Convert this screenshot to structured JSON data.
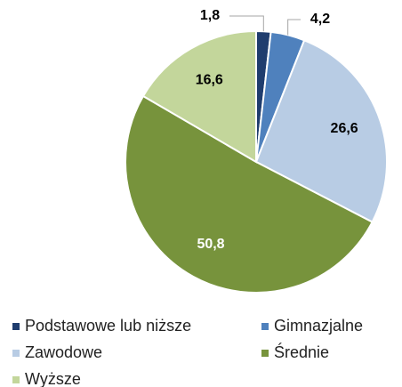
{
  "chart_data": {
    "type": "pie",
    "categories": [
      "Podstawowe lub niższe",
      "Gimnazjalne",
      "Zawodowe",
      "Średnie",
      "Wyższe"
    ],
    "values": [
      1.8,
      4.2,
      26.6,
      50.8,
      16.6
    ],
    "value_labels": [
      "1,8",
      "4,2",
      "26,6",
      "50,8",
      "16,6"
    ],
    "colors": [
      "#1f3d6e",
      "#4f81bd",
      "#b8cce4",
      "#77933c",
      "#c3d69b"
    ]
  }
}
